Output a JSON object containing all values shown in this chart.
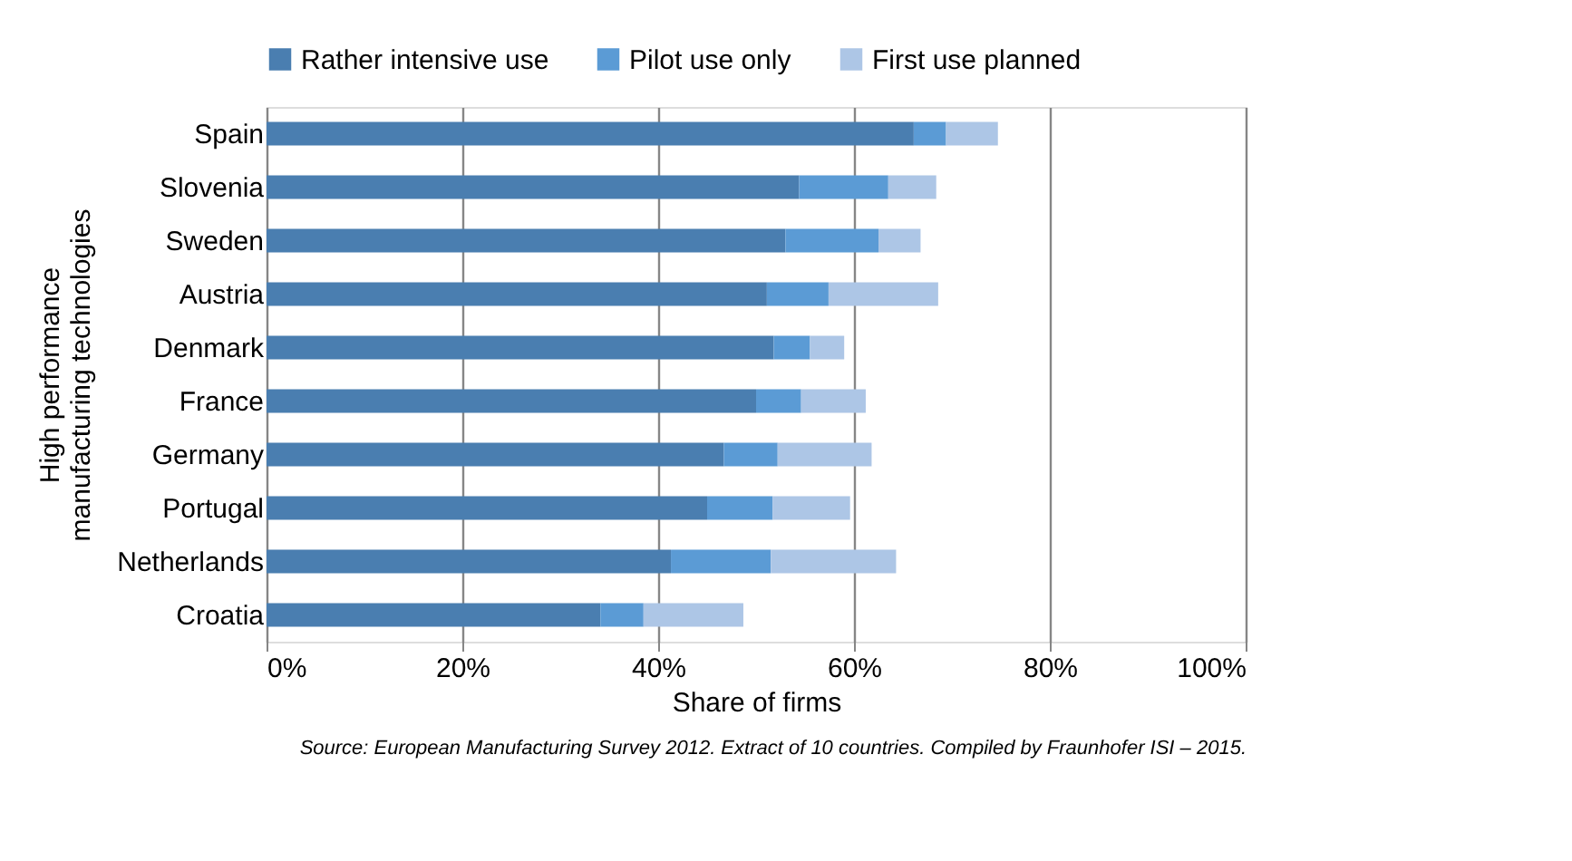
{
  "chart_data": {
    "type": "bar",
    "orientation": "horizontal",
    "stacked": true,
    "categories": [
      "Spain",
      "Slovenia",
      "Sweden",
      "Austria",
      "Denmark",
      "France",
      "Germany",
      "Portugal",
      "Netherlands",
      "Croatia"
    ],
    "series": [
      {
        "name": "Rather intensive use",
        "color": "#4a7eb0",
        "values": [
          66.1,
          54.4,
          53.0,
          51.1,
          51.8,
          50.0,
          46.7,
          45.0,
          41.3,
          34.1
        ]
      },
      {
        "name": "Pilot use only",
        "color": "#5b9bd5",
        "values": [
          3.3,
          9.1,
          9.5,
          6.3,
          3.7,
          4.6,
          5.5,
          6.7,
          10.2,
          4.4
        ]
      },
      {
        "name": "First use planned",
        "color": "#adc6e6",
        "values": [
          5.3,
          4.9,
          4.3,
          11.2,
          3.5,
          6.6,
          9.6,
          7.9,
          12.8,
          10.2
        ]
      }
    ],
    "xlim": [
      0,
      100
    ],
    "xticks": [
      {
        "value": 0,
        "label": "0%"
      },
      {
        "value": 20,
        "label": "20%"
      },
      {
        "value": 40,
        "label": "40%"
      },
      {
        "value": 60,
        "label": "60%"
      },
      {
        "value": 80,
        "label": "80%"
      },
      {
        "value": 100,
        "label": "100%"
      }
    ],
    "xlabel": "Share of firms",
    "ylabel": "High performance manufacturing technologies",
    "grid": "x",
    "legend": "top",
    "annotations": [
      "Source: European Manufacturing Survey 2012.  Extract of 10 countries. Compiled by Fraunhofer ISI – 2015."
    ]
  }
}
